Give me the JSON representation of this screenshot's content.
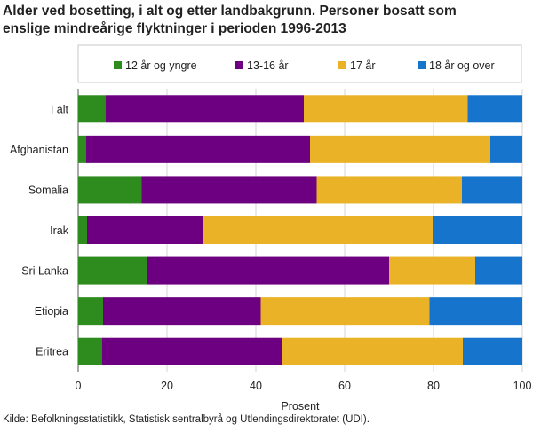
{
  "chart_data": {
    "type": "bar",
    "orientation": "horizontal",
    "stacked": true,
    "title": "Alder ved bosetting, i alt og etter landbakgrunn. Personer bosatt som enslige mindreårige flyktninger i perioden 1996-2013",
    "xlabel": "Prosent",
    "ylabel": "",
    "xlim": [
      0,
      100
    ],
    "xticks": [
      0,
      20,
      40,
      60,
      80,
      100
    ],
    "grid": true,
    "legend_position": "top",
    "categories": [
      "I alt",
      "Afghanistan",
      "Somalia",
      "Irak",
      "Sri Lanka",
      "Etiopia",
      "Eritrea"
    ],
    "series": [
      {
        "name": "12 år og yngre",
        "color": "#2e8b1e",
        "values": [
          6.2,
          1.8,
          14.3,
          2.0,
          15.6,
          5.6,
          5.4
        ]
      },
      {
        "name": "13-16 år",
        "color": "#6c0080",
        "values": [
          44.6,
          50.4,
          39.4,
          26.2,
          54.4,
          35.5,
          40.4
        ]
      },
      {
        "name": "17 år",
        "color": "#eab327",
        "values": [
          36.9,
          40.6,
          32.7,
          51.6,
          19.4,
          38.0,
          40.8
        ]
      },
      {
        "name": "18 år og over",
        "color": "#1774cc",
        "values": [
          12.3,
          7.2,
          13.6,
          20.2,
          10.6,
          20.9,
          13.4
        ]
      }
    ]
  },
  "source": "Kilde: Befolkningsstatistikk, Statistisk sentralbyrå og Utlendingsdirektoratet (UDI)."
}
